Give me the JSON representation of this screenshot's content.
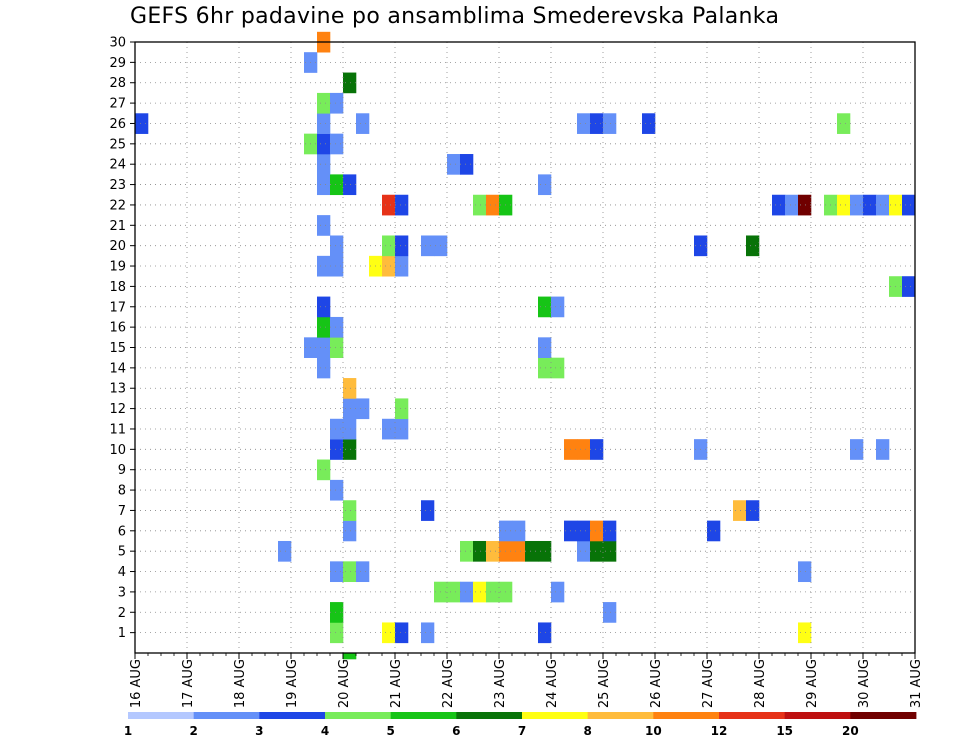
{
  "title": "GEFS 6hr padavine po ansamblima Smederevska Palanka",
  "chart_data": {
    "type": "heatmap",
    "title": "GEFS 6hr padavine po ansamblima Smederevska Palanka",
    "x_tick_labels": [
      "16 AUG",
      "17 AUG",
      "18 AUG",
      "19 AUG",
      "20 AUG",
      "21 AUG",
      "22 AUG",
      "23 AUG",
      "24 AUG",
      "25 AUG",
      "26 AUG",
      "27 AUG",
      "28 AUG",
      "29 AUG",
      "30 AUG",
      "31 AUG"
    ],
    "xlim": [
      "16 AUG 00Z",
      "31 AUG 00Z"
    ],
    "y_tick_labels": [
      "1",
      "2",
      "3",
      "4",
      "5",
      "6",
      "7",
      "8",
      "9",
      "10",
      "11",
      "12",
      "13",
      "14",
      "15",
      "16",
      "17",
      "18",
      "19",
      "20",
      "21",
      "22",
      "23",
      "24",
      "25",
      "26",
      "27",
      "28",
      "29",
      "30"
    ],
    "ylim": [
      0,
      30
    ],
    "y_meaning": "ensemble member",
    "time_step_hours": 6,
    "grid": true,
    "colorbar": {
      "position": "bottom",
      "labels": [
        "1",
        "2",
        "3",
        "4",
        "5",
        "6",
        "7",
        "8",
        "10",
        "12",
        "15",
        "20"
      ],
      "colors": [
        "#b4c8ff",
        "#6490f8",
        "#1e46e6",
        "#78ec5a",
        "#16c416",
        "#087308",
        "#ffff14",
        "#ffbc3c",
        "#ff8210",
        "#e63218",
        "#be1010",
        "#700000"
      ]
    },
    "cells": [
      {
        "m": 1,
        "d": "19 AUG",
        "h": 18,
        "c": 4
      },
      {
        "m": 1,
        "d": "20 AUG",
        "h": 18,
        "c": 7
      },
      {
        "m": 1,
        "d": "21 AUG",
        "h": 0,
        "c": 3
      },
      {
        "m": 1,
        "d": "21 AUG",
        "h": 12,
        "c": 2
      },
      {
        "m": 1,
        "d": "23 AUG",
        "h": 18,
        "c": 3
      },
      {
        "m": 1,
        "d": "28 AUG",
        "h": 18,
        "c": 7
      },
      {
        "m": 2,
        "d": "19 AUG",
        "h": 18,
        "c": 5
      },
      {
        "m": 2,
        "d": "25 AUG",
        "h": 0,
        "c": 2
      },
      {
        "m": 3,
        "d": "21 AUG",
        "h": 18,
        "c": 4
      },
      {
        "m": 3,
        "d": "22 AUG",
        "h": 0,
        "c": 4
      },
      {
        "m": 3,
        "d": "22 AUG",
        "h": 6,
        "c": 2
      },
      {
        "m": 3,
        "d": "22 AUG",
        "h": 12,
        "c": 7
      },
      {
        "m": 3,
        "d": "22 AUG",
        "h": 18,
        "c": 4
      },
      {
        "m": 3,
        "d": "23 AUG",
        "h": 0,
        "c": 4
      },
      {
        "m": 3,
        "d": "24 AUG",
        "h": 0,
        "c": 2
      },
      {
        "m": 4,
        "d": "19 AUG",
        "h": 18,
        "c": 2
      },
      {
        "m": 4,
        "d": "20 AUG",
        "h": 0,
        "c": 4
      },
      {
        "m": 4,
        "d": "20 AUG",
        "h": 6,
        "c": 2
      },
      {
        "m": 4,
        "d": "28 AUG",
        "h": 18,
        "c": 2
      },
      {
        "m": 5,
        "d": "18 AUG",
        "h": 18,
        "c": 2
      },
      {
        "m": 5,
        "d": "22 AUG",
        "h": 6,
        "c": 4
      },
      {
        "m": 5,
        "d": "22 AUG",
        "h": 12,
        "c": 6
      },
      {
        "m": 5,
        "d": "22 AUG",
        "h": 18,
        "c": 8
      },
      {
        "m": 5,
        "d": "23 AUG",
        "h": 0,
        "c": 10
      },
      {
        "m": 5,
        "d": "23 AUG",
        "h": 6,
        "c": 10
      },
      {
        "m": 5,
        "d": "23 AUG",
        "h": 12,
        "c": 6
      },
      {
        "m": 5,
        "d": "23 AUG",
        "h": 18,
        "c": 6
      },
      {
        "m": 5,
        "d": "24 AUG",
        "h": 12,
        "c": 2
      },
      {
        "m": 5,
        "d": "24 AUG",
        "h": 18,
        "c": 6
      },
      {
        "m": 5,
        "d": "25 AUG",
        "h": 0,
        "c": 6
      },
      {
        "m": 6,
        "d": "20 AUG",
        "h": 0,
        "c": 2
      },
      {
        "m": 6,
        "d": "23 AUG",
        "h": 0,
        "c": 2
      },
      {
        "m": 6,
        "d": "23 AUG",
        "h": 6,
        "c": 2
      },
      {
        "m": 6,
        "d": "24 AUG",
        "h": 6,
        "c": 3
      },
      {
        "m": 6,
        "d": "24 AUG",
        "h": 12,
        "c": 3
      },
      {
        "m": 6,
        "d": "24 AUG",
        "h": 18,
        "c": 10
      },
      {
        "m": 6,
        "d": "25 AUG",
        "h": 0,
        "c": 3
      },
      {
        "m": 6,
        "d": "27 AUG",
        "h": 0,
        "c": 3
      },
      {
        "m": 7,
        "d": "20 AUG",
        "h": 0,
        "c": 4
      },
      {
        "m": 7,
        "d": "21 AUG",
        "h": 12,
        "c": 3
      },
      {
        "m": 7,
        "d": "27 AUG",
        "h": 12,
        "c": 9
      },
      {
        "m": 7,
        "d": "27 AUG",
        "h": 18,
        "c": 3
      },
      {
        "m": 8,
        "d": "19 AUG",
        "h": 18,
        "c": 2
      },
      {
        "m": 9,
        "d": "19 AUG",
        "h": 12,
        "c": 4
      },
      {
        "m": 10,
        "d": "19 AUG",
        "h": 18,
        "c": 3
      },
      {
        "m": 10,
        "d": "20 AUG",
        "h": 0,
        "c": 6
      },
      {
        "m": 10,
        "d": "24 AUG",
        "h": 6,
        "c": 10
      },
      {
        "m": 10,
        "d": "24 AUG",
        "h": 12,
        "c": 10
      },
      {
        "m": 10,
        "d": "24 AUG",
        "h": 18,
        "c": 3
      },
      {
        "m": 10,
        "d": "26 AUG",
        "h": 18,
        "c": 2
      },
      {
        "m": 10,
        "d": "29 AUG",
        "h": 18,
        "c": 2
      },
      {
        "m": 10,
        "d": "30 AUG",
        "h": 6,
        "c": 2
      },
      {
        "m": 11,
        "d": "19 AUG",
        "h": 18,
        "c": 2
      },
      {
        "m": 11,
        "d": "20 AUG",
        "h": 0,
        "c": 2
      },
      {
        "m": 11,
        "d": "20 AUG",
        "h": 18,
        "c": 2
      },
      {
        "m": 11,
        "d": "21 AUG",
        "h": 0,
        "c": 2
      },
      {
        "m": 12,
        "d": "20 AUG",
        "h": 0,
        "c": 2
      },
      {
        "m": 12,
        "d": "20 AUG",
        "h": 6,
        "c": 2
      },
      {
        "m": 12,
        "d": "21 AUG",
        "h": 0,
        "c": 4
      },
      {
        "m": 13,
        "d": "20 AUG",
        "h": 0,
        "c": 8
      },
      {
        "m": 14,
        "d": "19 AUG",
        "h": 12,
        "c": 2
      },
      {
        "m": 14,
        "d": "23 AUG",
        "h": 18,
        "c": 4
      },
      {
        "m": 14,
        "d": "24 AUG",
        "h": 0,
        "c": 4
      },
      {
        "m": 15,
        "d": "19 AUG",
        "h": 6,
        "c": 2
      },
      {
        "m": 15,
        "d": "19 AUG",
        "h": 12,
        "c": 2
      },
      {
        "m": 15,
        "d": "19 AUG",
        "h": 18,
        "c": 4
      },
      {
        "m": 15,
        "d": "23 AUG",
        "h": 18,
        "c": 2
      },
      {
        "m": 16,
        "d": "19 AUG",
        "h": 12,
        "c": 5
      },
      {
        "m": 16,
        "d": "19 AUG",
        "h": 18,
        "c": 2
      },
      {
        "m": 17,
        "d": "19 AUG",
        "h": 12,
        "c": 3
      },
      {
        "m": 17,
        "d": "23 AUG",
        "h": 18,
        "c": 5
      },
      {
        "m": 17,
        "d": "24 AUG",
        "h": 0,
        "c": 2
      },
      {
        "m": 18,
        "d": "30 AUG",
        "h": 12,
        "c": 4
      },
      {
        "m": 18,
        "d": "30 AUG",
        "h": 18,
        "c": 3
      },
      {
        "m": 19,
        "d": "19 AUG",
        "h": 12,
        "c": 2
      },
      {
        "m": 19,
        "d": "19 AUG",
        "h": 18,
        "c": 2
      },
      {
        "m": 19,
        "d": "20 AUG",
        "h": 12,
        "c": 7
      },
      {
        "m": 19,
        "d": "20 AUG",
        "h": 18,
        "c": 9
      },
      {
        "m": 19,
        "d": "21 AUG",
        "h": 0,
        "c": 2
      },
      {
        "m": 20,
        "d": "19 AUG",
        "h": 18,
        "c": 2
      },
      {
        "m": 20,
        "d": "20 AUG",
        "h": 18,
        "c": 4
      },
      {
        "m": 20,
        "d": "21 AUG",
        "h": 0,
        "c": 3
      },
      {
        "m": 20,
        "d": "21 AUG",
        "h": 12,
        "c": 2
      },
      {
        "m": 20,
        "d": "21 AUG",
        "h": 18,
        "c": 2
      },
      {
        "m": 20,
        "d": "26 AUG",
        "h": 18,
        "c": 3
      },
      {
        "m": 20,
        "d": "27 AUG",
        "h": 18,
        "c": 6
      },
      {
        "m": 21,
        "d": "19 AUG",
        "h": 12,
        "c": 2
      },
      {
        "m": 22,
        "d": "20 AUG",
        "h": 18,
        "c": 13
      },
      {
        "m": 22,
        "d": "21 AUG",
        "h": 0,
        "c": 3
      },
      {
        "m": 22,
        "d": "22 AUG",
        "h": 12,
        "c": 4
      },
      {
        "m": 22,
        "d": "22 AUG",
        "h": 18,
        "c": 11
      },
      {
        "m": 22,
        "d": "23 AUG",
        "h": 0,
        "c": 5
      },
      {
        "m": 22,
        "d": "28 AUG",
        "h": 6,
        "c": 3
      },
      {
        "m": 22,
        "d": "28 AUG",
        "h": 12,
        "c": 2
      },
      {
        "m": 22,
        "d": "28 AUG",
        "h": 18,
        "c": 20
      },
      {
        "m": 22,
        "d": "29 AUG",
        "h": 6,
        "c": 4
      },
      {
        "m": 22,
        "d": "29 AUG",
        "h": 12,
        "c": 7
      },
      {
        "m": 22,
        "d": "29 AUG",
        "h": 18,
        "c": 2
      },
      {
        "m": 22,
        "d": "30 AUG",
        "h": 0,
        "c": 3
      },
      {
        "m": 22,
        "d": "30 AUG",
        "h": 6,
        "c": 2
      },
      {
        "m": 22,
        "d": "30 AUG",
        "h": 12,
        "c": 7
      },
      {
        "m": 22,
        "d": "30 AUG",
        "h": 18,
        "c": 3
      },
      {
        "m": 23,
        "d": "19 AUG",
        "h": 12,
        "c": 2
      },
      {
        "m": 23,
        "d": "19 AUG",
        "h": 18,
        "c": 5
      },
      {
        "m": 23,
        "d": "20 AUG",
        "h": 0,
        "c": 3
      },
      {
        "m": 23,
        "d": "23 AUG",
        "h": 18,
        "c": 2
      },
      {
        "m": 24,
        "d": "19 AUG",
        "h": 12,
        "c": 2
      },
      {
        "m": 24,
        "d": "22 AUG",
        "h": 0,
        "c": 2
      },
      {
        "m": 24,
        "d": "22 AUG",
        "h": 6,
        "c": 3
      },
      {
        "m": 25,
        "d": "19 AUG",
        "h": 6,
        "c": 4
      },
      {
        "m": 25,
        "d": "19 AUG",
        "h": 12,
        "c": 3
      },
      {
        "m": 25,
        "d": "19 AUG",
        "h": 18,
        "c": 2
      },
      {
        "m": 26,
        "d": "16 AUG",
        "h": 0,
        "c": 3
      },
      {
        "m": 26,
        "d": "19 AUG",
        "h": 12,
        "c": 2
      },
      {
        "m": 26,
        "d": "20 AUG",
        "h": 6,
        "c": 2
      },
      {
        "m": 26,
        "d": "24 AUG",
        "h": 12,
        "c": 2
      },
      {
        "m": 26,
        "d": "24 AUG",
        "h": 18,
        "c": 3
      },
      {
        "m": 26,
        "d": "25 AUG",
        "h": 0,
        "c": 2
      },
      {
        "m": 26,
        "d": "25 AUG",
        "h": 18,
        "c": 3
      },
      {
        "m": 26,
        "d": "29 AUG",
        "h": 12,
        "c": 4
      },
      {
        "m": 27,
        "d": "19 AUG",
        "h": 12,
        "c": 4
      },
      {
        "m": 27,
        "d": "19 AUG",
        "h": 18,
        "c": 2
      },
      {
        "m": 28,
        "d": "20 AUG",
        "h": 0,
        "c": 6
      },
      {
        "m": 29,
        "d": "19 AUG",
        "h": 6,
        "c": 2
      },
      {
        "m": 30,
        "d": "19 AUG",
        "h": 12,
        "c": 10
      },
      {
        "m": 0,
        "d": "20 AUG",
        "h": 0,
        "c": 5
      }
    ]
  }
}
